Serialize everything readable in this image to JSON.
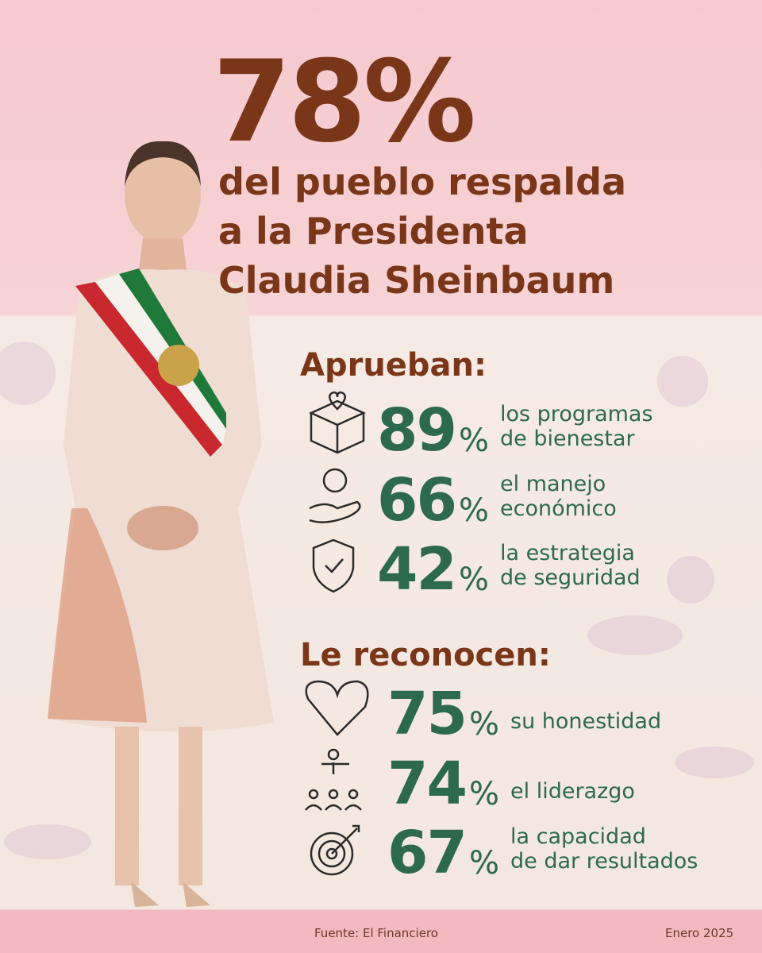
{
  "header": {
    "headline": "78%",
    "lines": [
      "del pueblo respalda",
      "a la Presidenta",
      "Claudia Sheinbaum"
    ]
  },
  "sections": [
    {
      "title": "Aprueban:",
      "items": [
        {
          "value": 89,
          "unit": "%",
          "label": [
            "los programas",
            "de bienestar"
          ]
        },
        {
          "value": 66,
          "unit": "%",
          "label": [
            "el manejo",
            "económico"
          ]
        },
        {
          "value": 42,
          "unit": "%",
          "label": [
            "la estrategia",
            "de seguridad"
          ]
        }
      ]
    },
    {
      "title": "Le reconocen:",
      "items": [
        {
          "value": 75,
          "unit": "%",
          "label": [
            "su honestidad"
          ]
        },
        {
          "value": 74,
          "unit": "%",
          "label": [
            "el liderazgo"
          ]
        },
        {
          "value": 67,
          "unit": "%",
          "label": [
            "la capacidad",
            "de dar resultados"
          ]
        }
      ]
    }
  ],
  "footer": {
    "source": "Fuente: El Financiero",
    "date": "Enero 2025"
  }
}
